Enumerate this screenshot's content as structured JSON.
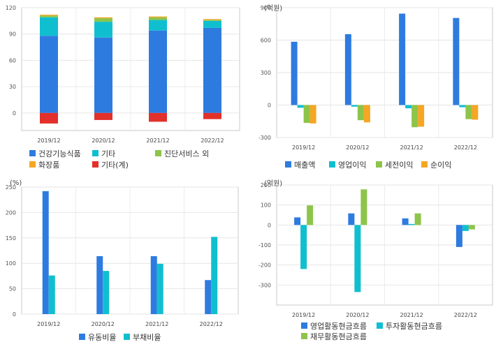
{
  "chart_data": [
    {
      "type": "bar",
      "stacked": true,
      "unit_label": "",
      "categories": [
        "2019/12",
        "2020/12",
        "2021/12",
        "2022/12"
      ],
      "ylim": [
        -20,
        120
      ],
      "yticks": [
        0,
        30,
        60,
        90,
        120
      ],
      "grid": true,
      "legend_position": "bottom",
      "series": [
        {
          "name": "건강기능식품",
          "color": "#2e7be0",
          "values": [
            88,
            86,
            94,
            97
          ]
        },
        {
          "name": "기타",
          "color": "#10bfcf",
          "values": [
            21,
            18,
            12,
            8
          ]
        },
        {
          "name": "진단서비스 외",
          "color": "#8dc44a",
          "values": [
            2,
            4,
            3,
            1
          ]
        },
        {
          "name": "화장품",
          "color": "#f5a623",
          "values": [
            1,
            1,
            1,
            1
          ]
        },
        {
          "name": "기타(계)",
          "color": "#e2302a",
          "values": [
            -12,
            -8,
            -10,
            -7
          ]
        }
      ]
    },
    {
      "type": "bar",
      "unit_label": "(억원)",
      "categories": [
        "2019/12",
        "2020/12",
        "2021/12",
        "2022/12"
      ],
      "ylim": [
        -300,
        900
      ],
      "yticks": [
        -300,
        0,
        300,
        600,
        900
      ],
      "grid": true,
      "legend_position": "bottom",
      "series": [
        {
          "name": "매출액",
          "color": "#2e7be0",
          "values": [
            585,
            655,
            845,
            805
          ]
        },
        {
          "name": "영업이익",
          "color": "#10bfcf",
          "values": [
            -25,
            -15,
            -30,
            -20
          ]
        },
        {
          "name": "세전이익",
          "color": "#8dc44a",
          "values": [
            -165,
            -140,
            -205,
            -130
          ]
        },
        {
          "name": "순이익",
          "color": "#f5a623",
          "values": [
            -170,
            -160,
            -200,
            -135
          ]
        }
      ]
    },
    {
      "type": "bar",
      "unit_label": "(%)",
      "categories": [
        "2019/12",
        "2020/12",
        "2021/12",
        "2022/12"
      ],
      "ylim": [
        0,
        250
      ],
      "yticks": [
        0,
        50,
        100,
        150,
        200,
        250
      ],
      "grid": true,
      "legend_position": "bottom",
      "series": [
        {
          "name": "유동비율",
          "color": "#2e7be0",
          "values": [
            242,
            114,
            114,
            67
          ]
        },
        {
          "name": "부채비율",
          "color": "#10bfcf",
          "values": [
            76,
            85,
            99,
            152
          ]
        }
      ]
    },
    {
      "type": "bar",
      "unit_label": "(억원)",
      "categories": [
        "2019/12",
        "2020/12",
        "2021/12",
        "2022/12"
      ],
      "ylim": [
        -400,
        200
      ],
      "yticks": [
        -300,
        -200,
        -100,
        0,
        100,
        200
      ],
      "grid": true,
      "legend_position": "bottom",
      "series": [
        {
          "name": "영업활동현금흐름",
          "color": "#2e7be0",
          "values": [
            38,
            58,
            33,
            -110
          ]
        },
        {
          "name": "투자활동현금흐름",
          "color": "#10bfcf",
          "values": [
            -220,
            -335,
            5,
            -30
          ]
        },
        {
          "name": "재무활동현금흐름",
          "color": "#8dc44a",
          "values": [
            98,
            178,
            58,
            -22
          ]
        }
      ]
    }
  ]
}
